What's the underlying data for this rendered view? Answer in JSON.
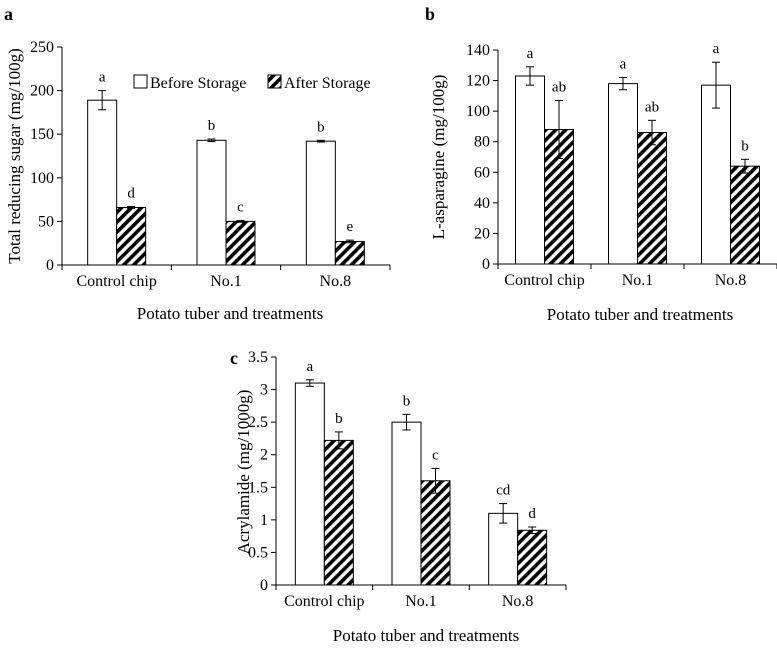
{
  "chart_data": [
    {
      "panel": "a",
      "type": "bar",
      "categories": [
        "Control chip",
        "No.1",
        "No.8"
      ],
      "series": [
        {
          "name": "Before Storage",
          "values": [
            189,
            143,
            142
          ],
          "errors": [
            11,
            1.5,
            1
          ],
          "letters": [
            "a",
            "b",
            "b"
          ]
        },
        {
          "name": "After Storage",
          "values": [
            66,
            50,
            27
          ],
          "errors": [
            1,
            1,
            1.5
          ],
          "letters": [
            "d",
            "c",
            "e"
          ]
        }
      ],
      "ylabel": "Total reducing sugar (mg/100g)",
      "xlabel": "Potato tuber and treatments",
      "ylim": [
        0,
        250
      ],
      "yticks": [
        "0",
        "50",
        "100",
        "150",
        "200",
        "250"
      ],
      "legend": "top-right"
    },
    {
      "panel": "b",
      "type": "bar",
      "categories": [
        "Control chip",
        "No.1",
        "No.8"
      ],
      "series": [
        {
          "name": "Before Storage",
          "values": [
            123,
            118,
            117
          ],
          "errors": [
            6,
            4,
            15
          ],
          "letters": [
            "a",
            "a",
            "a"
          ]
        },
        {
          "name": "After Storage",
          "values": [
            88,
            86,
            64
          ],
          "errors": [
            19,
            8,
            4.5
          ],
          "letters": [
            "ab",
            "ab",
            "b"
          ]
        }
      ],
      "ylabel": "L-asparagine (mg/100g)",
      "xlabel": "Potato tuber and treatments",
      "ylim": [
        0,
        140
      ],
      "yticks": [
        "0",
        "20",
        "40",
        "60",
        "80",
        "100",
        "120",
        "140"
      ]
    },
    {
      "panel": "c",
      "type": "bar",
      "categories": [
        "Control chip",
        "No.1",
        "No.8"
      ],
      "series": [
        {
          "name": "Before Storage",
          "values": [
            3.1,
            2.5,
            1.1
          ],
          "errors": [
            0.05,
            0.12,
            0.15
          ],
          "letters": [
            "a",
            "b",
            "cd"
          ]
        },
        {
          "name": "After Storage",
          "values": [
            2.22,
            1.6,
            0.84
          ],
          "errors": [
            0.13,
            0.19,
            0.05
          ],
          "letters": [
            "b",
            "c",
            "d"
          ]
        }
      ],
      "ylabel": "Acrylamide (mg/1000g)",
      "xlabel": "Potato tuber and treatments",
      "ylim": [
        0,
        3.5
      ],
      "yticks": [
        "0",
        "0.5",
        "1",
        "1.5",
        "2",
        "2.5",
        "3",
        "3.5"
      ]
    }
  ]
}
